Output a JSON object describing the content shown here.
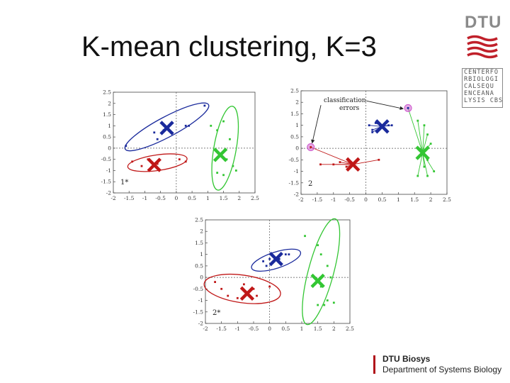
{
  "slide": {
    "title": "K-mean clustering, K=3"
  },
  "logos": {
    "dtu_text": "DTU",
    "dtu_color": "#8a8a8a",
    "dtu_red": "#c0202a",
    "cbs_lines": [
      "CENTERFO",
      "RBIOLOGI",
      "CALSEQU",
      "ENCEANA",
      "LYSIS CBS"
    ]
  },
  "footer": {
    "line1": "DTU Biosys",
    "line2": "Department of Systems Biology",
    "accent": "#b0121a"
  },
  "colors": {
    "blue": "#1a2a9c",
    "red": "#c01818",
    "green": "#33c633",
    "highlight": "#cc55cc"
  },
  "chart_data": [
    {
      "type": "scatter",
      "panel_label": "1*",
      "xlim": [
        -2,
        2.5
      ],
      "ylim": [
        -2,
        2.5
      ],
      "xticks": [
        "-2",
        "-1.5",
        "-1",
        "-0.5",
        "0",
        "0.5",
        "1",
        "1.5",
        "2",
        "2.5"
      ],
      "yticks": [
        "2.5",
        "2",
        "1.5",
        "1",
        "0.5",
        "0",
        "-0.5",
        "-1",
        "-1.5",
        "-2"
      ],
      "series": [
        {
          "color": "blue",
          "points": [
            [
              -1.6,
              0.1
            ],
            [
              -0.7,
              0.7
            ],
            [
              -0.6,
              0.4
            ],
            [
              -0.4,
              0.8
            ],
            [
              0.3,
              1.0
            ],
            [
              0.4,
              1.0
            ],
            [
              0.9,
              1.9
            ]
          ]
        },
        {
          "color": "red",
          "points": [
            [
              -1.4,
              -0.6
            ],
            [
              -1.1,
              -0.8
            ],
            [
              -0.9,
              -0.5
            ],
            [
              -0.6,
              -0.7
            ],
            [
              0.1,
              -0.5
            ],
            [
              0.3,
              -0.6
            ]
          ]
        },
        {
          "color": "green",
          "points": [
            [
              1.1,
              1.0
            ],
            [
              1.3,
              0.8
            ],
            [
              1.5,
              1.2
            ],
            [
              1.7,
              0.4
            ],
            [
              1.6,
              -0.5
            ],
            [
              1.8,
              -0.8
            ],
            [
              1.9,
              -1.0
            ],
            [
              1.5,
              -1.2
            ],
            [
              1.3,
              -1.1
            ]
          ]
        }
      ],
      "centroids": [
        {
          "color": "blue",
          "x": -0.3,
          "y": 0.9
        },
        {
          "color": "red",
          "x": -0.7,
          "y": -0.75
        },
        {
          "color": "green",
          "x": 1.4,
          "y": -0.3
        }
      ],
      "ellipses": [
        {
          "color": "blue",
          "cx": -0.3,
          "cy": 0.95,
          "rx": 1.5,
          "ry": 0.45,
          "angle": 28
        },
        {
          "color": "red",
          "cx": -0.6,
          "cy": -0.65,
          "rx": 0.95,
          "ry": 0.35,
          "angle": 8
        },
        {
          "color": "green",
          "cx": 1.55,
          "cy": 0.0,
          "rx": 1.35,
          "ry": 0.5,
          "angle": 80
        }
      ]
    },
    {
      "type": "scatter",
      "panel_label": "2",
      "annotation": "classification errors",
      "xlim": [
        -2,
        2.5
      ],
      "ylim": [
        -2,
        2.5
      ],
      "xticks": [
        "-2",
        "-1.5",
        "-1",
        "-0.5",
        "0",
        "0.5",
        "1",
        "1.5",
        "2",
        "2.5"
      ],
      "yticks": [
        "2.5",
        "2",
        "1.5",
        "1",
        "0.5",
        "0",
        "-0.5",
        "-1",
        "-1.5",
        "-2"
      ],
      "series": [
        {
          "color": "blue",
          "points": [
            [
              0.1,
              1.0
            ],
            [
              0.2,
              0.8
            ],
            [
              0.3,
              1.1
            ],
            [
              0.7,
              1.0
            ],
            [
              0.8,
              1.0
            ],
            [
              0.2,
              0.7
            ]
          ]
        },
        {
          "color": "red",
          "points": [
            [
              -1.4,
              -0.7
            ],
            [
              -1.0,
              -0.7
            ],
            [
              -0.8,
              -0.6
            ],
            [
              -0.6,
              -0.8
            ],
            [
              -0.4,
              -0.7
            ],
            [
              0.4,
              -0.5
            ]
          ]
        },
        {
          "color": "green",
          "points": [
            [
              1.6,
              1.2
            ],
            [
              1.8,
              1.0
            ],
            [
              1.9,
              0.6
            ],
            [
              2.0,
              0.2
            ],
            [
              1.9,
              -0.5
            ],
            [
              1.8,
              -0.8
            ],
            [
              2.1,
              -1.0
            ],
            [
              1.6,
              -1.2
            ],
            [
              1.9,
              -1.2
            ],
            [
              1.8,
              -0.3
            ]
          ]
        }
      ],
      "highlighted": [
        {
          "color": "blue",
          "x": 1.3,
          "y": 1.75
        },
        {
          "color": "red",
          "x": -1.7,
          "y": 0.05
        }
      ],
      "centroids": [
        {
          "color": "blue",
          "x": 0.5,
          "y": 0.95
        },
        {
          "color": "red",
          "x": -0.4,
          "y": -0.7
        },
        {
          "color": "green",
          "x": 1.75,
          "y": -0.2
        }
      ]
    },
    {
      "type": "scatter",
      "panel_label": "2*",
      "xlim": [
        -2,
        2.5
      ],
      "ylim": [
        -2,
        2.5
      ],
      "xticks": [
        "-2",
        "-1.5",
        "-1",
        "-0.5",
        "0",
        "0.5",
        "1",
        "1.5",
        "2",
        "2.5"
      ],
      "yticks": [
        "2.5",
        "2",
        "1.5",
        "1",
        "0.5",
        "0",
        "-0.5",
        "-1",
        "-1.5",
        "-2"
      ],
      "series": [
        {
          "color": "blue",
          "points": [
            [
              -0.2,
              0.7
            ],
            [
              -0.1,
              0.5
            ],
            [
              0.0,
              0.8
            ],
            [
              0.3,
              0.8
            ],
            [
              0.5,
              1.0
            ],
            [
              0.6,
              1.0
            ]
          ]
        },
        {
          "color": "red",
          "points": [
            [
              -1.7,
              -0.2
            ],
            [
              -1.5,
              -0.5
            ],
            [
              -1.3,
              -0.8
            ],
            [
              -1.0,
              -0.9
            ],
            [
              -0.7,
              -0.7
            ],
            [
              -0.5,
              -0.5
            ],
            [
              0.0,
              -0.4
            ],
            [
              -0.4,
              -0.8
            ],
            [
              -0.8,
              -0.3
            ]
          ]
        },
        {
          "color": "green",
          "points": [
            [
              1.1,
              1.8
            ],
            [
              1.5,
              1.4
            ],
            [
              1.6,
              1.0
            ],
            [
              1.8,
              0.5
            ],
            [
              1.9,
              0.0
            ],
            [
              1.6,
              -0.4
            ],
            [
              1.8,
              -1.0
            ],
            [
              2.0,
              -1.1
            ],
            [
              1.7,
              -1.2
            ],
            [
              1.5,
              -1.2
            ]
          ]
        }
      ],
      "centroids": [
        {
          "color": "blue",
          "x": 0.2,
          "y": 0.8
        },
        {
          "color": "red",
          "x": -0.7,
          "y": -0.7
        },
        {
          "color": "green",
          "x": 1.5,
          "y": -0.15
        }
      ],
      "ellipses": [
        {
          "color": "blue",
          "cx": 0.2,
          "cy": 0.75,
          "rx": 0.8,
          "ry": 0.35,
          "angle": 18
        },
        {
          "color": "red",
          "cx": -0.85,
          "cy": -0.5,
          "rx": 1.2,
          "ry": 0.6,
          "angle": -8
        },
        {
          "color": "green",
          "cx": 1.6,
          "cy": 0.25,
          "rx": 1.7,
          "ry": 0.55,
          "angle": 75
        }
      ]
    }
  ]
}
